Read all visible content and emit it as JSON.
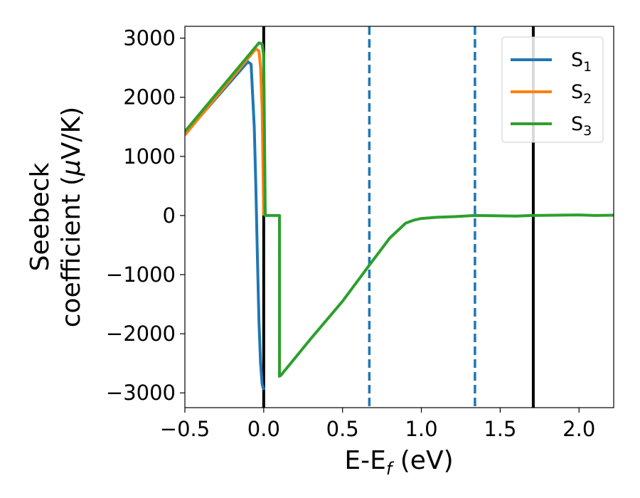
{
  "chart_data": {
    "type": "line",
    "xlabel_main": "E-E",
    "xlabel_sub": "f",
    "xlabel_unit": " (eV)",
    "ylabel_line1": "Seebeck",
    "ylabel_line2": "coefficient  (",
    "ylabel_mu": "μ",
    "ylabel_unit": "V/K)",
    "xlim": [
      -0.5,
      2.22
    ],
    "ylim": [
      -3250,
      3200
    ],
    "x_ticks": [
      -0.5,
      0.0,
      0.5,
      1.0,
      1.5,
      2.0
    ],
    "x_tick_labels": [
      "−0.5",
      "0.0",
      "0.5",
      "1.0",
      "1.5",
      "2.0"
    ],
    "y_ticks": [
      -3000,
      -2000,
      -1000,
      0,
      1000,
      2000,
      3000
    ],
    "y_tick_labels": [
      "−3000",
      "−2000",
      "−1000",
      "0",
      "1000",
      "2000",
      "3000"
    ],
    "legend_position": "top-right",
    "vertical_lines": [
      {
        "x": 0.0,
        "style": "solid",
        "color": "#000000"
      },
      {
        "x": 0.67,
        "style": "dashed",
        "color": "#1f77b4"
      },
      {
        "x": 1.34,
        "style": "dashed",
        "color": "#1f77b4"
      },
      {
        "x": 1.71,
        "style": "solid",
        "color": "#000000"
      }
    ],
    "series": [
      {
        "name": "S",
        "sub": "1",
        "color": "#1f77b4",
        "points": [
          [
            -0.5,
            1380
          ],
          [
            -0.1,
            2600
          ],
          [
            -0.08,
            2560
          ],
          [
            -0.06,
            1500
          ],
          [
            -0.05,
            500
          ],
          [
            -0.04,
            -700
          ],
          [
            -0.03,
            -1800
          ],
          [
            -0.02,
            -2500
          ],
          [
            -0.01,
            -2850
          ],
          [
            0.0,
            -2950
          ]
        ]
      },
      {
        "name": "S",
        "sub": "2",
        "color": "#ff7f0e",
        "points": [
          [
            -0.5,
            1360
          ],
          [
            -0.05,
            2820
          ],
          [
            -0.03,
            2780
          ],
          [
            -0.02,
            2500
          ],
          [
            -0.01,
            1800
          ],
          [
            0.0,
            0
          ]
        ]
      },
      {
        "name": "S",
        "sub": "3",
        "color": "#2ca02c",
        "points": [
          [
            -0.5,
            1420
          ],
          [
            -0.03,
            2920
          ],
          [
            -0.01,
            2900
          ],
          [
            0.0,
            2700
          ],
          [
            0.01,
            0
          ],
          [
            0.1,
            0
          ],
          [
            0.1,
            -2720
          ],
          [
            0.11,
            -2700
          ],
          [
            0.3,
            -2080
          ],
          [
            0.5,
            -1450
          ],
          [
            0.67,
            -840
          ],
          [
            0.8,
            -380
          ],
          [
            0.9,
            -130
          ],
          [
            0.95,
            -80
          ],
          [
            1.0,
            -50
          ],
          [
            1.1,
            -30
          ],
          [
            1.2,
            -20
          ],
          [
            1.34,
            0
          ],
          [
            1.5,
            -5
          ],
          [
            1.6,
            -10
          ],
          [
            1.7,
            0
          ],
          [
            1.85,
            5
          ],
          [
            2.0,
            10
          ],
          [
            2.1,
            0
          ],
          [
            2.22,
            5
          ]
        ]
      }
    ]
  }
}
